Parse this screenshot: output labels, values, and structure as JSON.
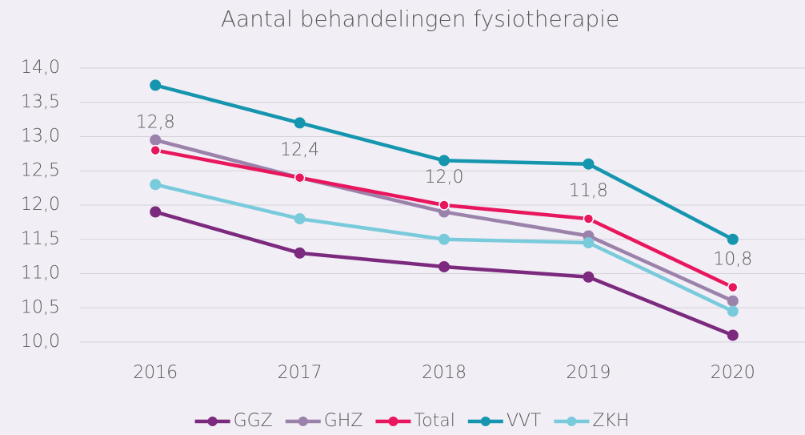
{
  "chart_data": {
    "type": "line",
    "title": "Aantal behandelingen fysiotherapie",
    "categories": [
      "2016",
      "2017",
      "2018",
      "2019",
      "2020"
    ],
    "series": [
      {
        "name": "GGZ",
        "color": "#7b2a7e",
        "values": [
          11.9,
          11.3,
          11.1,
          10.95,
          10.1
        ]
      },
      {
        "name": "GHZ",
        "color": "#9b82aa",
        "values": [
          12.95,
          12.4,
          11.9,
          11.55,
          10.6
        ]
      },
      {
        "name": "Total",
        "color": "#e8175d",
        "values": [
          12.8,
          12.4,
          12.0,
          11.8,
          10.8
        ],
        "value_labels": [
          "12,8",
          "12,4",
          "12,0",
          "11,8",
          "10,8"
        ]
      },
      {
        "name": "VVT",
        "color": "#1596ae",
        "values": [
          13.75,
          13.2,
          12.65,
          12.6,
          11.5
        ]
      },
      {
        "name": "ZKH",
        "color": "#79cbdc",
        "values": [
          12.3,
          11.8,
          11.5,
          11.45,
          10.45
        ]
      }
    ],
    "ylim": [
      10,
      14
    ],
    "yticks": [
      {
        "value": 10,
        "label": "10,0"
      },
      {
        "value": 10.5,
        "label": "10,5"
      },
      {
        "value": 11,
        "label": "11,0"
      },
      {
        "value": 11.5,
        "label": "11,5"
      },
      {
        "value": 12,
        "label": "12,0"
      },
      {
        "value": 12.5,
        "label": "12,5"
      },
      {
        "value": 13,
        "label": "13,0"
      },
      {
        "value": 13.5,
        "label": "13,5"
      },
      {
        "value": 14,
        "label": "14,0"
      }
    ],
    "grid": true,
    "legend": "bottom"
  }
}
